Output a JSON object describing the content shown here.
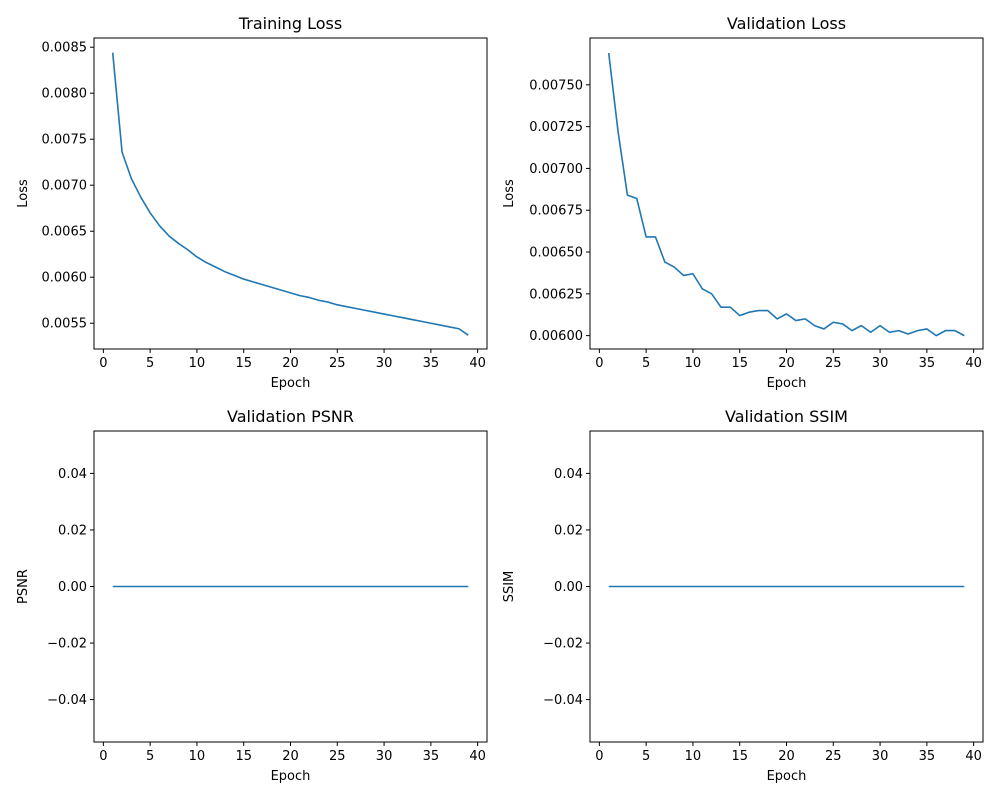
{
  "chart_data": [
    {
      "type": "line",
      "title": "Training Loss",
      "xlabel": "Epoch",
      "ylabel": "Loss",
      "xlim": [
        -1,
        41
      ],
      "ylim": [
        0.00522,
        0.0086
      ],
      "xticks": [
        0,
        5,
        10,
        15,
        20,
        25,
        30,
        35,
        40
      ],
      "xtick_labels": [
        "0",
        "5",
        "10",
        "15",
        "20",
        "25",
        "30",
        "35",
        "40"
      ],
      "yticks": [
        0.0055,
        0.006,
        0.0065,
        0.007,
        0.0075,
        0.008,
        0.0085
      ],
      "ytick_labels": [
        "0.0055",
        "0.0060",
        "0.0065",
        "0.0070",
        "0.0075",
        "0.0080",
        "0.0085"
      ],
      "grid": false,
      "series": [
        {
          "name": "Training Loss",
          "x": [
            1,
            2,
            3,
            4,
            5,
            6,
            7,
            8,
            9,
            10,
            11,
            12,
            13,
            14,
            15,
            16,
            17,
            18,
            19,
            20,
            21,
            22,
            23,
            24,
            25,
            26,
            27,
            28,
            29,
            30,
            31,
            32,
            33,
            34,
            35,
            36,
            37,
            38,
            39
          ],
          "values": [
            0.00844,
            0.00736,
            0.00707,
            0.00687,
            0.0067,
            0.00656,
            0.00645,
            0.00637,
            0.0063,
            0.00622,
            0.00616,
            0.00611,
            0.00606,
            0.00602,
            0.00598,
            0.00595,
            0.00592,
            0.00589,
            0.00586,
            0.00583,
            0.0058,
            0.00578,
            0.00575,
            0.00573,
            0.0057,
            0.00568,
            0.00566,
            0.00564,
            0.00562,
            0.0056,
            0.00558,
            0.00556,
            0.00554,
            0.00552,
            0.0055,
            0.00548,
            0.00546,
            0.00544,
            0.00537
          ]
        }
      ]
    },
    {
      "type": "line",
      "title": "Validation Loss",
      "xlabel": "Epoch",
      "ylabel": "Loss",
      "xlim": [
        -1,
        41
      ],
      "ylim": [
        0.00592,
        0.00778
      ],
      "xticks": [
        0,
        5,
        10,
        15,
        20,
        25,
        30,
        35,
        40
      ],
      "xtick_labels": [
        "0",
        "5",
        "10",
        "15",
        "20",
        "25",
        "30",
        "35",
        "40"
      ],
      "yticks": [
        0.006,
        0.00625,
        0.0065,
        0.00675,
        0.007,
        0.00725,
        0.0075
      ],
      "ytick_labels": [
        "0.00600",
        "0.00625",
        "0.00650",
        "0.00675",
        "0.00700",
        "0.00725",
        "0.00750"
      ],
      "grid": false,
      "series": [
        {
          "name": "Validation Loss",
          "x": [
            1,
            2,
            3,
            4,
            5,
            6,
            7,
            8,
            9,
            10,
            11,
            12,
            13,
            14,
            15,
            16,
            17,
            18,
            19,
            20,
            21,
            22,
            23,
            24,
            25,
            26,
            27,
            28,
            29,
            30,
            31,
            32,
            33,
            34,
            35,
            36,
            37,
            38,
            39
          ],
          "values": [
            0.00769,
            0.00722,
            0.00684,
            0.00682,
            0.00659,
            0.00659,
            0.00644,
            0.00641,
            0.00636,
            0.00637,
            0.00628,
            0.00625,
            0.00617,
            0.00617,
            0.00612,
            0.00614,
            0.00615,
            0.00615,
            0.0061,
            0.00613,
            0.00609,
            0.0061,
            0.00606,
            0.00604,
            0.00608,
            0.00607,
            0.00603,
            0.00606,
            0.00602,
            0.00606,
            0.00602,
            0.00603,
            0.00601,
            0.00603,
            0.00604,
            0.006,
            0.00603,
            0.00603,
            0.006
          ]
        }
      ]
    },
    {
      "type": "line",
      "title": "Validation PSNR",
      "xlabel": "Epoch",
      "ylabel": "PSNR",
      "xlim": [
        -1,
        41
      ],
      "ylim": [
        -0.055,
        0.055
      ],
      "xticks": [
        0,
        5,
        10,
        15,
        20,
        25,
        30,
        35,
        40
      ],
      "xtick_labels": [
        "0",
        "5",
        "10",
        "15",
        "20",
        "25",
        "30",
        "35",
        "40"
      ],
      "yticks": [
        -0.04,
        -0.02,
        0.0,
        0.02,
        0.04
      ],
      "ytick_labels": [
        "−0.04",
        "−0.02",
        "0.00",
        "0.02",
        "0.04"
      ],
      "grid": false,
      "series": [
        {
          "name": "Validation PSNR",
          "x": [
            1,
            39
          ],
          "values": [
            0,
            0
          ]
        }
      ]
    },
    {
      "type": "line",
      "title": "Validation SSIM",
      "xlabel": "Epoch",
      "ylabel": "SSIM",
      "xlim": [
        -1,
        41
      ],
      "ylim": [
        -0.055,
        0.055
      ],
      "xticks": [
        0,
        5,
        10,
        15,
        20,
        25,
        30,
        35,
        40
      ],
      "xtick_labels": [
        "0",
        "5",
        "10",
        "15",
        "20",
        "25",
        "30",
        "35",
        "40"
      ],
      "yticks": [
        -0.04,
        -0.02,
        0.0,
        0.02,
        0.04
      ],
      "ytick_labels": [
        "−0.04",
        "−0.02",
        "0.00",
        "0.02",
        "0.04"
      ],
      "grid": false,
      "series": [
        {
          "name": "Validation SSIM",
          "x": [
            1,
            39
          ],
          "values": [
            0,
            0
          ]
        }
      ]
    }
  ]
}
